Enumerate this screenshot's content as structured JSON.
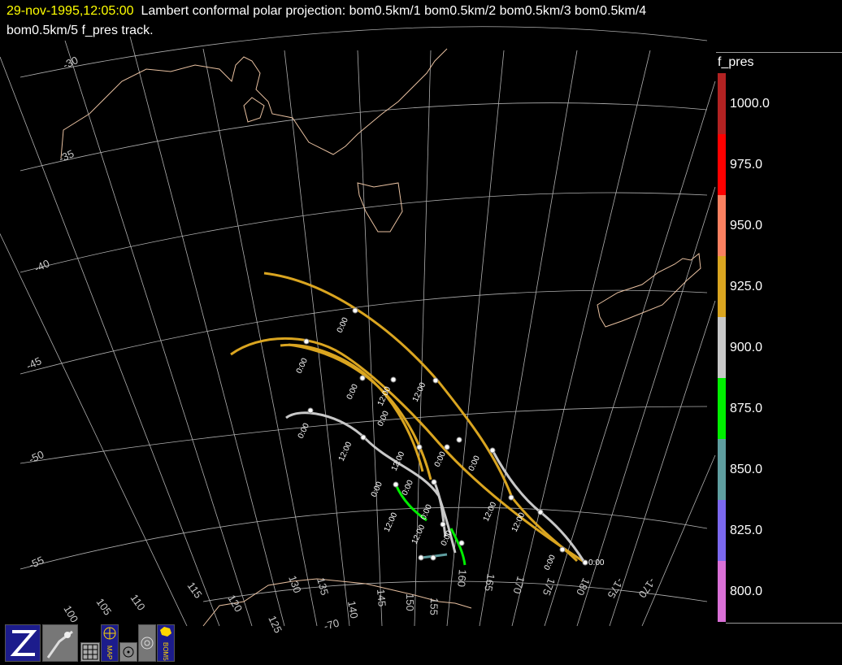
{
  "header": {
    "date": "29-nov-1995,12:05:00",
    "line1": "Lambert conformal polar projection:  bom0.5km/1 bom0.5km/2 bom0.5km/3 bom0.5km/4",
    "line2": "bom0.5km/5 f_pres track."
  },
  "colorbar": {
    "title": "f_pres",
    "levels": [
      {
        "label": "1000.0",
        "color": "#b22222"
      },
      {
        "label": "975.0",
        "color": "#ff0000"
      },
      {
        "label": "950.0",
        "color": "#fa8060"
      },
      {
        "label": "925.0",
        "color": "#daa520"
      },
      {
        "label": "900.0",
        "color": "#c8c8c8"
      },
      {
        "label": "875.0",
        "color": "#00ee00"
      },
      {
        "label": "850.0",
        "color": "#5f9ea0"
      },
      {
        "label": "825.0",
        "color": "#7b68ee"
      },
      {
        "label": "800.0",
        "color": "#da70d6"
      }
    ]
  },
  "map": {
    "coast_color": "#e8c0a0",
    "grid_color": "#b0b0b0",
    "lat_labels": [
      "-30",
      "-35",
      "-40",
      "-45",
      "-50",
      "-55"
    ],
    "lon_labels": [
      "100",
      "105",
      "110",
      "115",
      "120",
      "125",
      "130",
      "135",
      "140",
      "145",
      "150",
      "155",
      "160",
      "165",
      "170",
      "175",
      "180",
      "-175",
      "-170"
    ],
    "bottom_lat_label": "-70",
    "time_labels": [
      "0:00",
      "0:00",
      "0:00",
      "0:00",
      "0:00",
      "12:00",
      "12:00",
      "12:00",
      "12:00",
      "12:00",
      "0:00",
      "0:00",
      "0:00",
      "12:00",
      "12:00",
      "0:00",
      "0:00",
      "0:00",
      "12:00",
      "0:00",
      "0:00"
    ]
  },
  "toolbar": {
    "icons": [
      "zebra-logo-icon",
      "satellite-image-icon",
      "grid-icon",
      "map-icon",
      "compass-icon",
      "radar-icon",
      "bom-logo-icon"
    ],
    "map_label": "MAP",
    "bom_label": "BOM5"
  }
}
